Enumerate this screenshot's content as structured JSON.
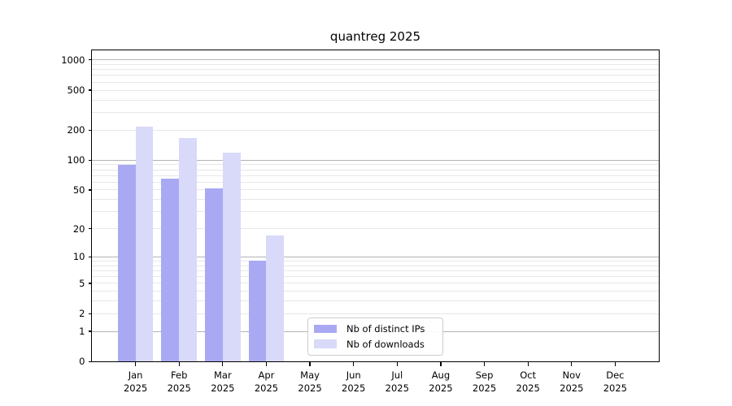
{
  "chart_data": {
    "type": "bar",
    "title": "quantreg 2025",
    "categories": [
      "Jan 2025",
      "Feb 2025",
      "Mar 2025",
      "Apr 2025",
      "May 2025",
      "Jun 2025",
      "Jul 2025",
      "Aug 2025",
      "Sep 2025",
      "Oct 2025",
      "Nov 2025",
      "Dec 2025"
    ],
    "series": [
      {
        "name": "Nb of distinct IPs",
        "color": "#a9a9f3",
        "values": [
          90,
          65,
          52,
          9,
          0,
          0,
          0,
          0,
          0,
          0,
          0,
          0
        ]
      },
      {
        "name": "Nb of downloads",
        "color": "#d9d9f9",
        "values": [
          215,
          166,
          118,
          17,
          0,
          0,
          0,
          0,
          0,
          0,
          0,
          0
        ]
      }
    ],
    "xlabel": "",
    "ylabel": "",
    "yscale": "log10(1+v)",
    "ylim": [
      0,
      1258
    ],
    "yticks": [
      0,
      1,
      2,
      5,
      10,
      20,
      50,
      100,
      200,
      500,
      1000
    ],
    "y_major_gridlines": [
      1,
      10,
      100,
      1000
    ],
    "y_minor_gridlines": [
      2,
      3,
      4,
      5,
      6,
      7,
      8,
      9,
      20,
      30,
      40,
      50,
      60,
      70,
      80,
      90,
      200,
      300,
      400,
      500,
      600,
      700,
      800,
      900
    ],
    "grid": true,
    "legend_position": "lower center inside",
    "colors": {
      "background": "#ffffff",
      "axis": "#000000",
      "major_grid": "#b3b3b3",
      "minor_grid": "#e7e7e7"
    }
  }
}
